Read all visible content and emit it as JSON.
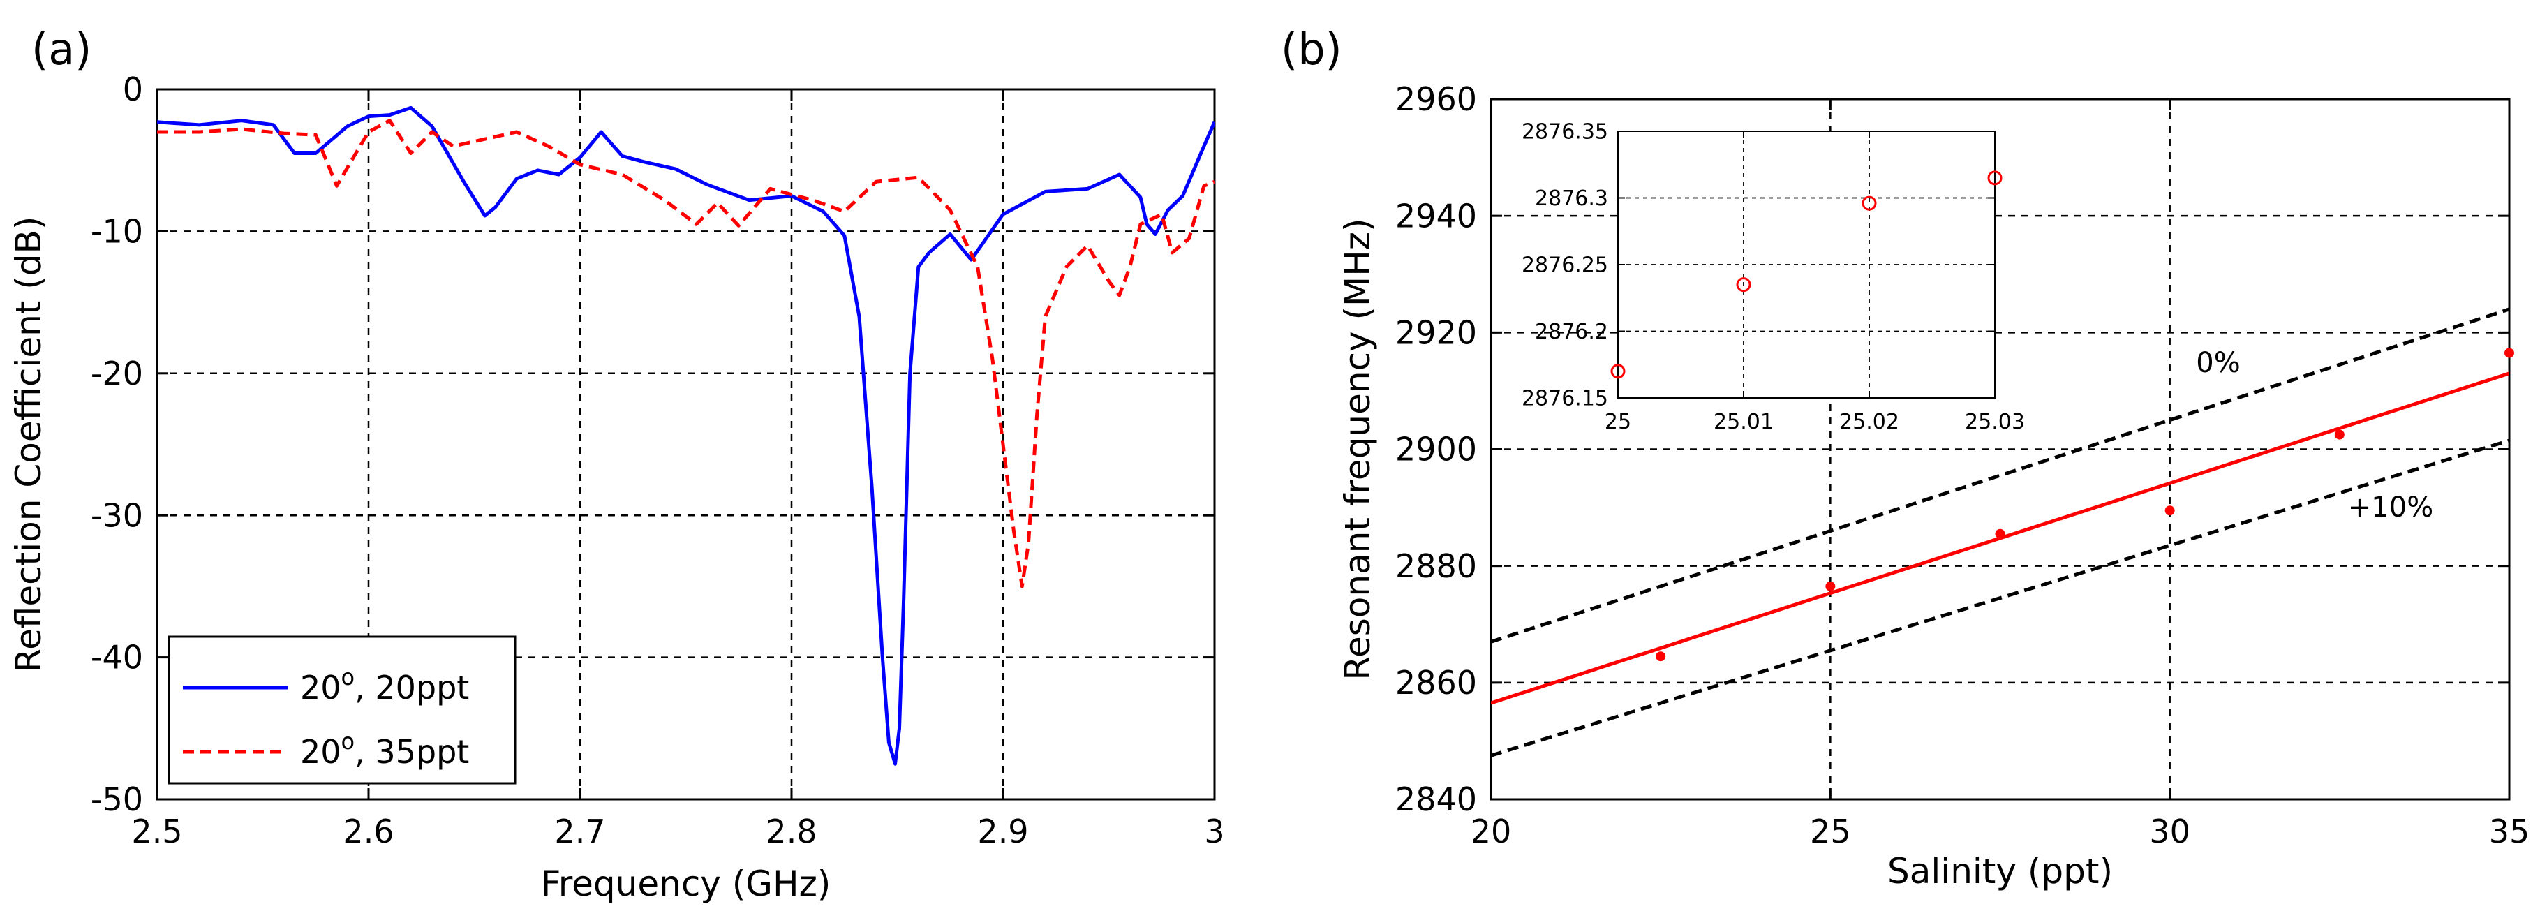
{
  "panels": {
    "a_label": "(a)",
    "b_label": "(b)"
  },
  "chart_data": [
    {
      "id": "a",
      "type": "line",
      "title": "",
      "xlabel": "Frequency (GHz)",
      "ylabel": "Reflection Coefficient (dB)",
      "xlim": [
        2.5,
        3.0
      ],
      "ylim": [
        -50,
        0
      ],
      "grid": true,
      "xticks": [
        2.5,
        2.6,
        2.7,
        2.8,
        2.9,
        3.0
      ],
      "xtick_labels": [
        "2.5",
        "2.6",
        "2.7",
        "2.8",
        "2.9",
        "3"
      ],
      "yticks": [
        -50,
        -40,
        -30,
        -20,
        -10,
        0
      ],
      "ytick_labels": [
        "-50",
        "-40",
        "-30",
        "-20",
        "-10",
        "0"
      ],
      "legend_position": "bottom-left",
      "series": [
        {
          "name_base": "20",
          "name_sup": "o",
          "name_rest": ", 20ppt",
          "color": "#0000ff",
          "dash": "solid",
          "x": [
            2.5,
            2.52,
            2.54,
            2.555,
            2.565,
            2.575,
            2.59,
            2.6,
            2.61,
            2.62,
            2.63,
            2.645,
            2.655,
            2.66,
            2.67,
            2.68,
            2.69,
            2.7,
            2.71,
            2.72,
            2.73,
            2.745,
            2.76,
            2.78,
            2.8,
            2.815,
            2.825,
            2.832,
            2.838,
            2.843,
            2.846,
            2.849,
            2.851,
            2.853,
            2.856,
            2.86,
            2.865,
            2.875,
            2.885,
            2.9,
            2.92,
            2.94,
            2.955,
            2.965,
            2.968,
            2.972,
            2.978,
            2.985,
            2.995,
            3.0
          ],
          "y": [
            -2.3,
            -2.5,
            -2.2,
            -2.5,
            -4.5,
            -4.5,
            -2.6,
            -1.9,
            -1.8,
            -1.3,
            -2.6,
            -6.5,
            -8.9,
            -8.3,
            -6.3,
            -5.7,
            -6.0,
            -4.8,
            -3.0,
            -4.7,
            -5.1,
            -5.6,
            -6.7,
            -7.8,
            -7.5,
            -8.6,
            -10.3,
            -16.0,
            -28.0,
            -40.0,
            -46.0,
            -47.5,
            -45.0,
            -36.0,
            -20.0,
            -12.5,
            -11.5,
            -10.2,
            -12.0,
            -8.8,
            -7.2,
            -7.0,
            -6.0,
            -7.6,
            -9.5,
            -10.2,
            -8.5,
            -7.5,
            -4.0,
            -2.3
          ]
        },
        {
          "name_base": "20",
          "name_sup": "o",
          "name_rest": ", 35ppt",
          "color": "#ff0000",
          "dash": "dashed",
          "x": [
            2.5,
            2.52,
            2.54,
            2.56,
            2.575,
            2.585,
            2.592,
            2.6,
            2.61,
            2.62,
            2.63,
            2.64,
            2.655,
            2.67,
            2.685,
            2.7,
            2.72,
            2.74,
            2.755,
            2.765,
            2.775,
            2.79,
            2.81,
            2.825,
            2.84,
            2.86,
            2.875,
            2.888,
            2.895,
            2.9,
            2.905,
            2.909,
            2.912,
            2.916,
            2.92,
            2.93,
            2.94,
            2.95,
            2.955,
            2.96,
            2.965,
            2.975,
            2.98,
            2.988,
            2.995,
            3.0
          ],
          "y": [
            -3.0,
            -3.0,
            -2.8,
            -3.1,
            -3.2,
            -6.8,
            -5.0,
            -3.0,
            -2.2,
            -4.5,
            -3.0,
            -4.0,
            -3.5,
            -3.0,
            -4.0,
            -5.3,
            -6.0,
            -7.8,
            -9.5,
            -8.0,
            -9.6,
            -7.0,
            -7.8,
            -8.6,
            -6.5,
            -6.2,
            -8.5,
            -12.5,
            -19.0,
            -25.0,
            -31.0,
            -35.0,
            -32.0,
            -23.0,
            -16.0,
            -12.5,
            -11.0,
            -13.5,
            -14.5,
            -12.5,
            -9.5,
            -8.8,
            -11.5,
            -10.5,
            -6.8,
            -6.5
          ]
        }
      ]
    },
    {
      "id": "b",
      "type": "scatter",
      "title": "",
      "xlabel": "Salinity (ppt)",
      "ylabel": "Resonant frequency (MHz)",
      "xlim": [
        20,
        35
      ],
      "ylim": [
        2840,
        2960
      ],
      "grid": true,
      "xticks": [
        20,
        25,
        30,
        35
      ],
      "xtick_labels": [
        "20",
        "25",
        "30",
        "35"
      ],
      "yticks": [
        2840,
        2860,
        2880,
        2900,
        2920,
        2940,
        2960
      ],
      "ytick_labels": [
        "2840",
        "2860",
        "2880",
        "2900",
        "2920",
        "2940",
        "2960"
      ],
      "points": {
        "color": "#ff0000",
        "x": [
          22.5,
          25,
          27.5,
          30,
          32.5,
          35
        ],
        "y": [
          2864.5,
          2876.5,
          2885.5,
          2889.5,
          2902.5,
          2916.5
        ]
      },
      "fit": {
        "color": "#ff0000",
        "x": [
          20,
          35
        ],
        "y": [
          2856.5,
          2913.0
        ]
      },
      "bounds": [
        {
          "label": "0%",
          "color": "#000000",
          "x": [
            20,
            35
          ],
          "y": [
            2867.0,
            2924.0
          ]
        },
        {
          "label": "+10%",
          "color": "#000000",
          "x": [
            20,
            35
          ],
          "y": [
            2847.5,
            2901.5
          ]
        }
      ],
      "inset": {
        "type": "scatter",
        "xlim": [
          25,
          25.03
        ],
        "ylim": [
          2876.15,
          2876.35
        ],
        "xticks": [
          25,
          25.01,
          25.02,
          25.03
        ],
        "xtick_labels": [
          "25",
          "25.01",
          "25.02",
          "25.03"
        ],
        "yticks": [
          2876.15,
          2876.2,
          2876.25,
          2876.3,
          2876.35
        ],
        "ytick_labels": [
          "2876.15",
          "2876.2",
          "2876.25",
          "2876.3",
          "2876.35"
        ],
        "color": "#ff0000",
        "x": [
          25,
          25.01,
          25.02,
          25.03
        ],
        "y": [
          2876.17,
          2876.235,
          2876.296,
          2876.315
        ]
      }
    }
  ]
}
